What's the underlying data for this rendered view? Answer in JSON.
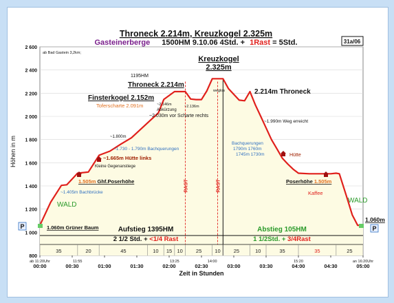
{
  "header": {
    "title": "Throneck 2.214m, Kreuzkogel 2.325m",
    "subtitle_a": "Gasteinerberge",
    "subtitle_b": "1500HM   9.10.06   4Std. +",
    "subtitle_c": "1Rast",
    "subtitle_d": "= 5Std.",
    "tour_id": "31a/06"
  },
  "colors": {
    "profile": "#e0201c",
    "fill": "#fdfbe3",
    "accent_purple": "#7a1f8c",
    "accent_orange": "#e07020",
    "accent_blue": "#3070c0",
    "accent_green": "#2a9a2a",
    "text_dark": "#111111"
  },
  "chart_data": {
    "type": "area",
    "title": "Throneck 2.214m, Kreuzkogel 2.325m",
    "ylabel": "Höhen in m",
    "xlabel": "Zeit in Stunden",
    "ylim": [
      800,
      2600
    ],
    "xlim": [
      0,
      300
    ],
    "y_ticks": [
      "800",
      "1 000",
      "1 200",
      "1 400",
      "1 600",
      "1 800",
      "2 000",
      "2 200",
      "2 400",
      "2 600"
    ],
    "x_ticks": [
      "00:00",
      "00:30",
      "01:00",
      "01:30",
      "02:00",
      "02:30",
      "03:00",
      "03:30",
      "04:00",
      "04:30",
      "05:00"
    ],
    "x_ticks_small": [
      {
        "m": 0,
        "text": "ab 11:20Uhr"
      },
      {
        "m": 35,
        "text": "11:55"
      },
      {
        "m": 125,
        "text": "13:25"
      },
      {
        "m": 160,
        "text": "14:00"
      },
      {
        "m": 240,
        "text": "15:20"
      },
      {
        "m": 300,
        "text": "an 16:20Uhr"
      }
    ],
    "series": [
      {
        "values": [
          [
            0,
            1060
          ],
          [
            10,
            1260
          ],
          [
            20,
            1405
          ],
          [
            25,
            1410
          ],
          [
            35,
            1510
          ],
          [
            45,
            1520
          ],
          [
            55,
            1665
          ],
          [
            65,
            1700
          ],
          [
            75,
            1760
          ],
          [
            85,
            1815
          ],
          [
            110,
            2030
          ],
          [
            115,
            2146
          ],
          [
            125,
            2214
          ],
          [
            130,
            2214
          ],
          [
            135,
            2214
          ],
          [
            140,
            2150
          ],
          [
            145,
            2145
          ],
          [
            150,
            2145
          ],
          [
            155,
            2220
          ],
          [
            160,
            2325
          ],
          [
            165,
            2325
          ],
          [
            170,
            2325
          ],
          [
            175,
            2240
          ],
          [
            180,
            2190
          ],
          [
            185,
            2140
          ],
          [
            190,
            2135
          ],
          [
            195,
            2214
          ],
          [
            200,
            2100
          ],
          [
            205,
            2000
          ],
          [
            210,
            1900
          ],
          [
            215,
            1800
          ],
          [
            220,
            1720
          ],
          [
            225,
            1640
          ],
          [
            230,
            1590
          ],
          [
            235,
            1545
          ],
          [
            240,
            1510
          ],
          [
            250,
            1505
          ],
          [
            260,
            1505
          ],
          [
            270,
            1505
          ],
          [
            275,
            1510
          ],
          [
            278,
            1505
          ],
          [
            285,
            1300
          ],
          [
            290,
            1150
          ],
          [
            295,
            1060
          ],
          [
            300,
            1060
          ]
        ]
      }
    ],
    "rest_lines": [
      {
        "m": 135,
        "label": "RAST"
      },
      {
        "m": 165,
        "label": "RAST"
      }
    ],
    "divider_minute": 170,
    "segment_boundaries": [
      0,
      35,
      55,
      100,
      115,
      125,
      135,
      160,
      170,
      195,
      210,
      240,
      275,
      300
    ],
    "segment_labels": [
      "35",
      "20",
      "45",
      "10",
      "15",
      "10",
      "25",
      "10",
      "25",
      "10",
      "35",
      "35",
      "25"
    ],
    "segment_colors": [
      "#222222",
      "#222222",
      "#222222",
      "#222222",
      "#222222",
      "#222222",
      "#222222",
      "#222222",
      "#222222",
      "#222222",
      "#222222",
      "#e0201c",
      "#222222"
    ],
    "labels": {
      "bad_gastein": "ab Bad Gastein 3,2km;",
      "hm_1195": "1195HM",
      "throneck_mid": "Throneck 2.214m",
      "kreuzkogel_1": "Kreuzkogel",
      "kreuzkogel_2": "2.325m",
      "weglos": "weglos",
      "throneck_right": "2.214m Throneck",
      "finsterkogel": "Finsterkogel 2.152m",
      "toferscharte": "Toferscharte 2.091m",
      "h2146": "~2.146m",
      "abkuerzung": "Abkürzung",
      "h2136": "~2.136m",
      "scharte": "~2.030m vor Scharte rechts",
      "weg_erreicht": "~1.990m Weg erreicht",
      "h1800": "~1.800m",
      "bachquerungen_1": "~1.730 - 1.790m Bachquerungen",
      "bachq_r1": "Bachquerungen",
      "bachq_r2": "1790m  1760m",
      "bachq_r3": "1745m 1730m",
      "huette_label": "Hütte",
      "huette_links": "~1.665m Hütte links",
      "gegenanstiege": "Kleine Gegenanstiege",
      "ghf_alt": "1.505m",
      "ghf_name": " Ghf.Poserhöhe",
      "poserhoehe_name": "Poserhöhe ",
      "poserhoehe_alt": "1.505m",
      "kaffee": "Kaffee",
      "bachbruecke": "~1.405m Bachbrücke",
      "wald_left": "WALD",
      "wald_right": "WALD",
      "gruener_baum": "1.060m Grüner Baum",
      "end_alt": "1.060m",
      "p": "P",
      "aufstieg": "Aufstieg 1395HM",
      "aufstieg_time": "2 1/2 Std. + ",
      "aufstieg_rast": "<1/4 Rast",
      "abstieg": "Abstieg 105HM",
      "abstieg_time": "1 1/2Std. + ",
      "abstieg_rast": "3/4Rast"
    }
  }
}
